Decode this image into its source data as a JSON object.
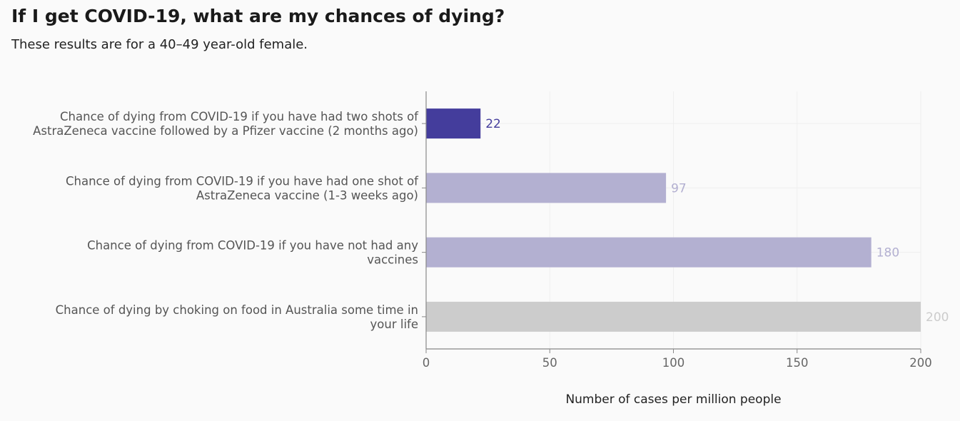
{
  "header": {
    "title": "If I get COVID-19, what are my chances of dying?",
    "subtitle": "These results are for a 40–49 year-old female."
  },
  "colors": {
    "highlight": "#443d9c",
    "muted": "#b3b0d1",
    "reference": "#cccccc",
    "axis": "#888888",
    "grid": "#efefef"
  },
  "chart_data": {
    "type": "bar",
    "orientation": "horizontal",
    "title": "If I get COVID-19, what are my chances of dying?",
    "subtitle": "These results are for a 40–49 year-old female.",
    "xlabel": "Number of cases per million people",
    "ylabel": "",
    "xlim": [
      0,
      200
    ],
    "xticks": [
      0,
      50,
      100,
      150,
      200
    ],
    "grid": true,
    "categories": [
      [
        "Chance of dying from COVID-19 if you have had two shots of",
        "AstraZeneca vaccine followed by a Pfizer vaccine (2 months ago)"
      ],
      [
        "Chance of dying from COVID-19 if you have had one shot of",
        "AstraZeneca vaccine (1-3 weeks ago)"
      ],
      [
        "Chance of dying from COVID-19 if you have not had any",
        "vaccines"
      ],
      [
        "Chance of dying by choking on food in Australia some time in",
        "your life"
      ]
    ],
    "values": [
      22,
      97,
      180,
      200
    ],
    "bar_colors": [
      "highlight",
      "muted",
      "muted",
      "reference"
    ]
  }
}
